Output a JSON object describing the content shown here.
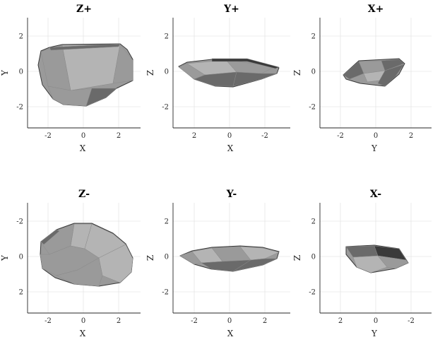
{
  "panels": [
    {
      "title": "Z+",
      "xlabel": "X",
      "ylabel": "Y",
      "xticks": [
        "-2",
        "0",
        "2"
      ],
      "yticks": [
        "2",
        "0",
        "-2"
      ],
      "shape": "zplus"
    },
    {
      "title": "Y+",
      "xlabel": "X",
      "ylabel": "Z",
      "xticks": [
        "2",
        "0",
        "-2"
      ],
      "yticks": [
        "2",
        "0",
        "-2"
      ],
      "shape": "yplus"
    },
    {
      "title": "X+",
      "xlabel": "Y",
      "ylabel": "Z",
      "xticks": [
        "-2",
        "0",
        "2"
      ],
      "yticks": [
        "2",
        "0",
        "-2"
      ],
      "shape": "xplus"
    },
    {
      "title": "Z-",
      "xlabel": "X",
      "ylabel": "Y",
      "xticks": [
        "-2",
        "0",
        "2"
      ],
      "yticks": [
        "-2",
        "0",
        "2"
      ],
      "shape": "zminus"
    },
    {
      "title": "Y-",
      "xlabel": "X",
      "ylabel": "Z",
      "xticks": [
        "-2",
        "0",
        "2"
      ],
      "yticks": [
        "2",
        "0",
        "-2"
      ],
      "shape": "yminus"
    },
    {
      "title": "X-",
      "xlabel": "Y",
      "ylabel": "Z",
      "xticks": [
        "2",
        "0",
        "-2"
      ],
      "yticks": [
        "2",
        "0",
        "-2"
      ],
      "shape": "xminus"
    }
  ],
  "colors": {
    "light": "#b4b4b4",
    "mid": "#9a9a9a",
    "dark": "#6a6a6a",
    "edge": "#3a3a3a",
    "grid": "#e6e6e6"
  }
}
